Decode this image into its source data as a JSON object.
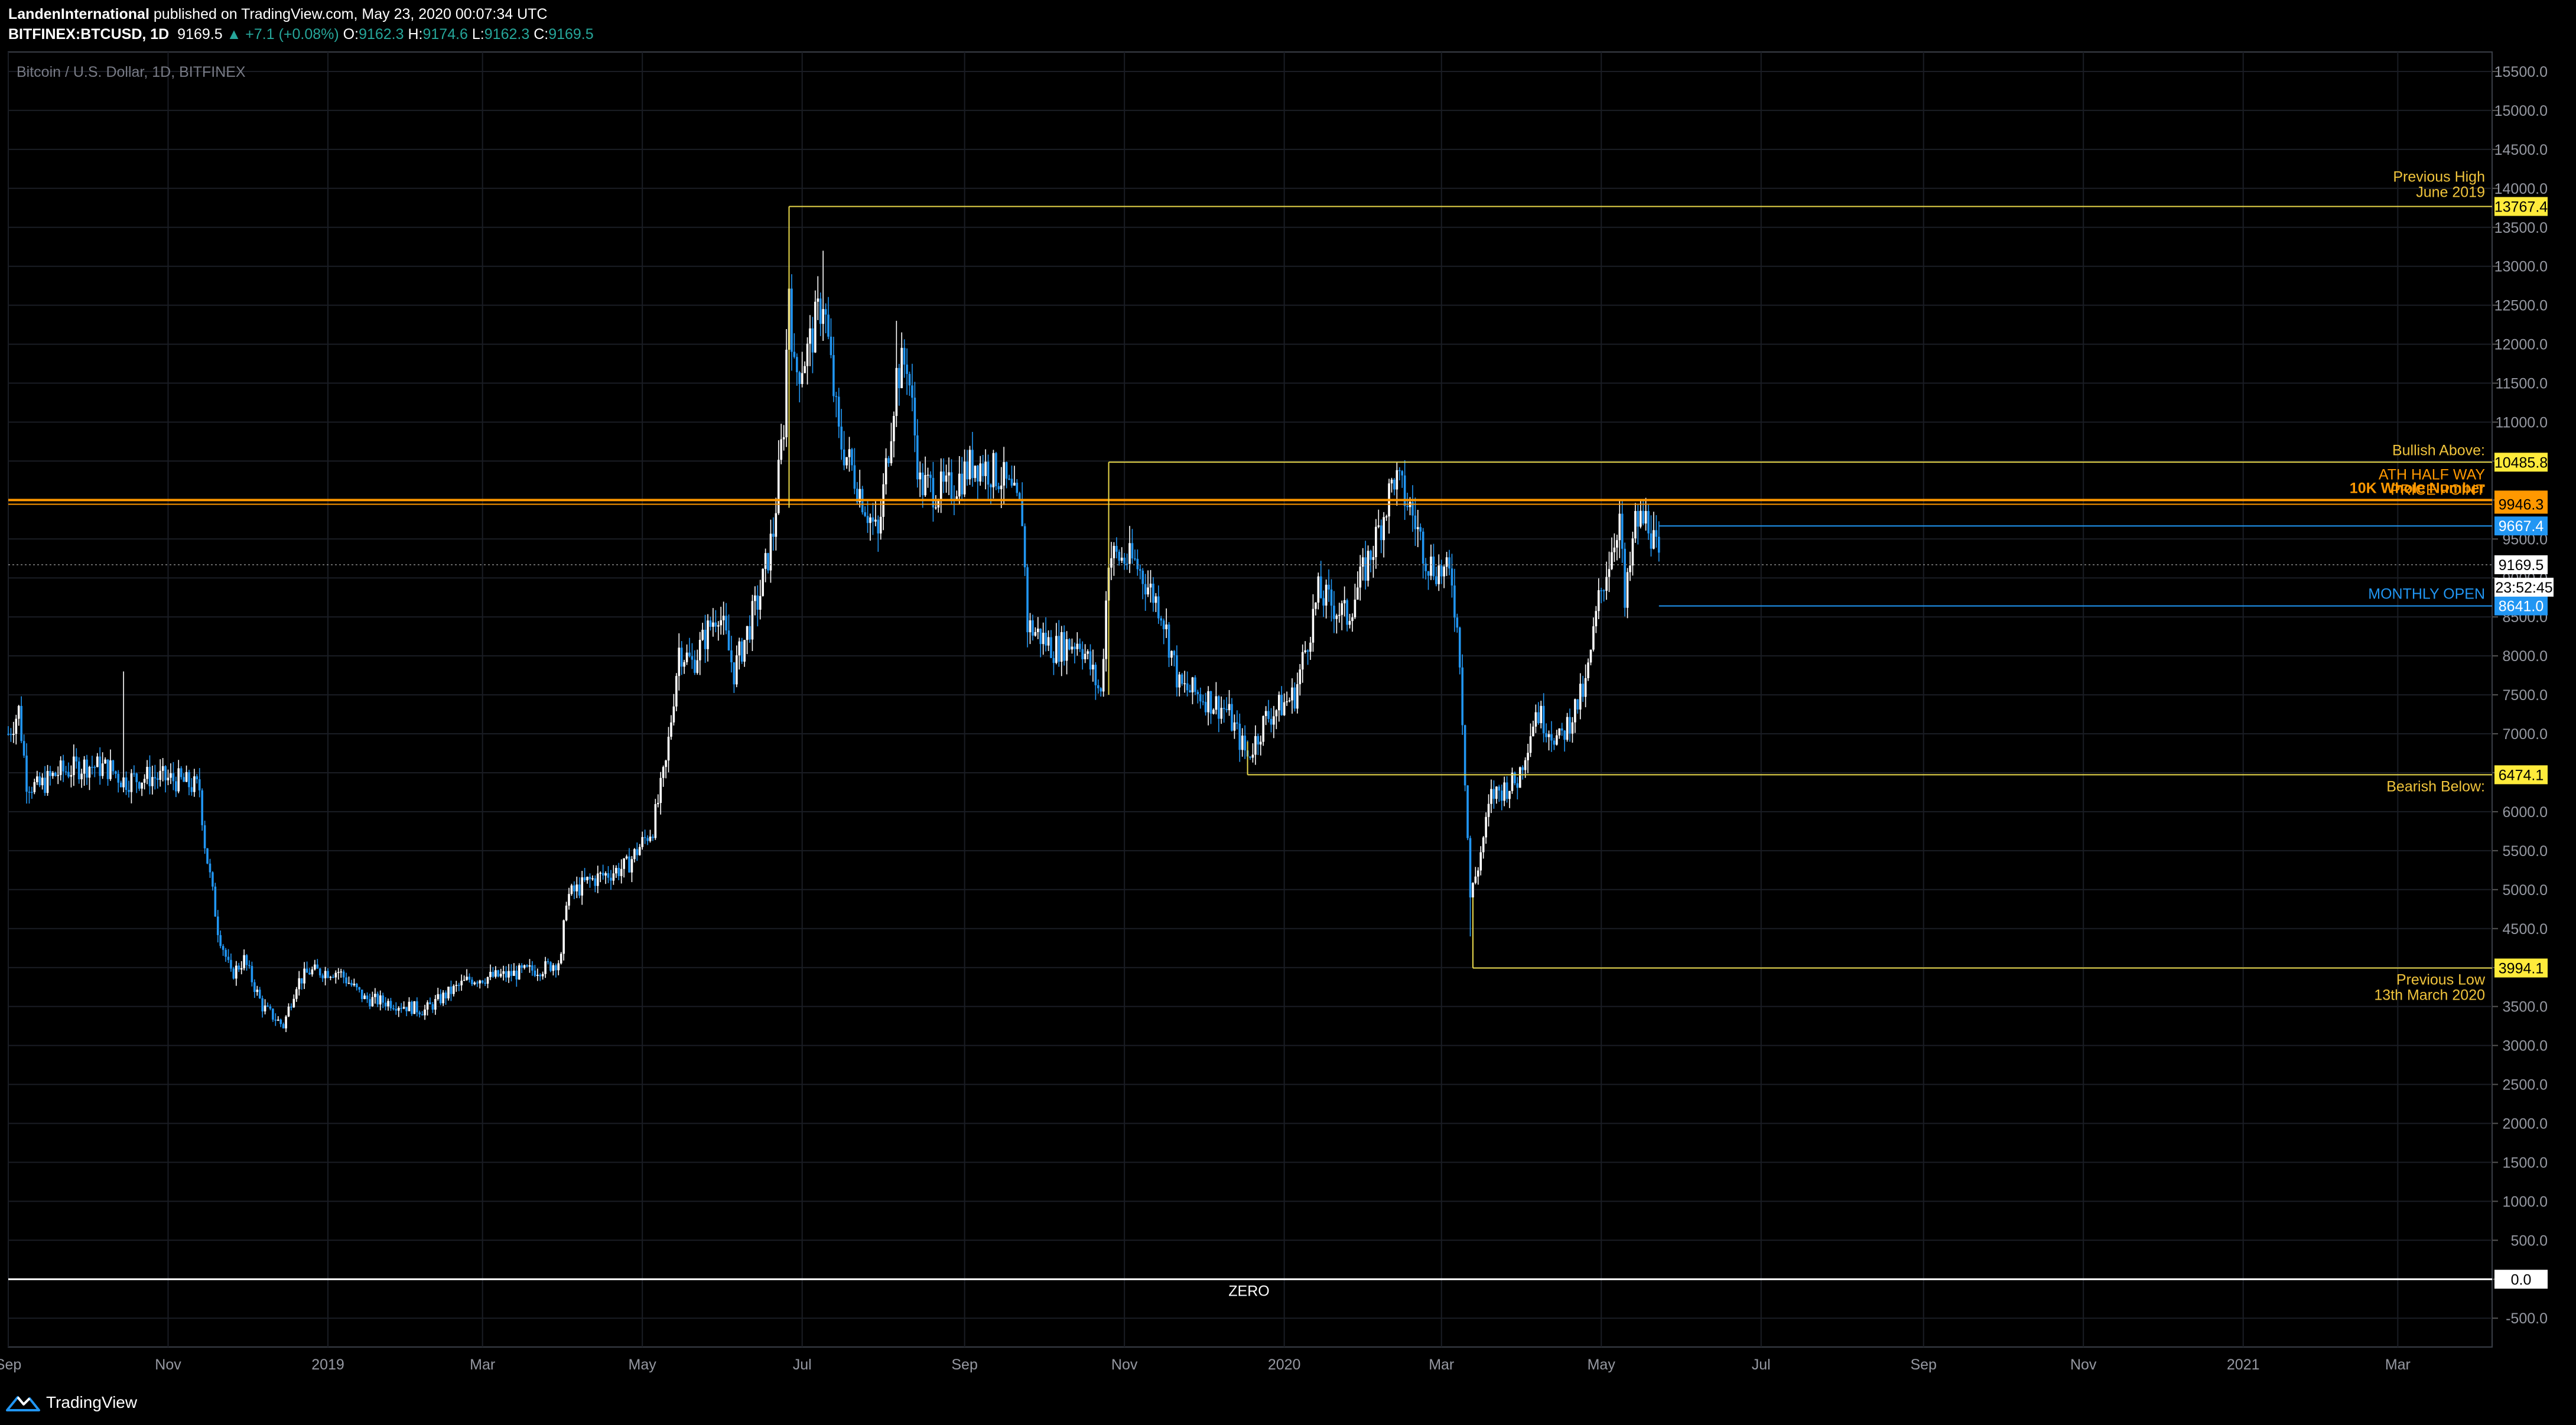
{
  "header": {
    "author": "LandenInternational",
    "published": "published on TradingView.com, May 23, 2020 00:07:34 UTC",
    "symbol": "BITFINEX:BTCUSD, 1D",
    "last": "9169.5",
    "change": "+7.1 (+0.08%)",
    "o_label": "O:",
    "o_value": "9162.3",
    "h_label": "H:",
    "h_value": "9174.6",
    "l_label": "L:",
    "l_value": "9162.3",
    "c_label": "C:",
    "c_value": "9169.5"
  },
  "footer": {
    "brand": "TradingView"
  },
  "colors": {
    "background": "#000000",
    "grid": "#1a1d24",
    "up_candle": "#ffffff",
    "down_candle": "#2196f3",
    "yellow_line": "#e8d84a",
    "orange_line": "#ff9800",
    "blue_line": "#2196f3",
    "white_line": "#ffffff",
    "gold_text": "#f0c43c"
  },
  "chart_data": {
    "type": "candlestick",
    "title": "Bitcoin / U.S. Dollar, 1D, BITFINEX",
    "y_ticks": [
      "15500.0",
      "15000.0",
      "14500.0",
      "14000.0",
      "13500.0",
      "13000.0",
      "12500.0",
      "12000.0",
      "11500.0",
      "11000.0",
      "10500.0",
      "10000.0",
      "9500.0",
      "9000.0",
      "8500.0",
      "8000.0",
      "7500.0",
      "7000.0",
      "6500.0",
      "6000.0",
      "5500.0",
      "5000.0",
      "4500.0",
      "4000.0",
      "3500.0",
      "3000.0",
      "2500.0",
      "2000.0",
      "1500.0",
      "1000.0",
      "500.0",
      "0.0",
      "-500.0"
    ],
    "x_ticks": [
      "Sep",
      "Nov",
      "2019",
      "Mar",
      "May",
      "Jul",
      "Sep",
      "Nov",
      "2020",
      "Mar",
      "May",
      "Jul",
      "Sep",
      "Nov",
      "2021",
      "Mar"
    ],
    "x_tick_dates": [
      "2018-09-01",
      "2018-11-01",
      "2019-01-01",
      "2019-03-01",
      "2019-05-01",
      "2019-07-01",
      "2019-09-01",
      "2019-11-01",
      "2020-01-01",
      "2020-03-01",
      "2020-05-01",
      "2020-07-01",
      "2020-09-01",
      "2020-11-01",
      "2021-01-01",
      "2021-03-01"
    ],
    "x_range": [
      "2018-09-01",
      "2021-04-06"
    ],
    "y_range": [
      -870,
      15750
    ],
    "price_path": [
      [
        "2018-09-01",
        7000
      ],
      [
        "2018-09-05",
        7300
      ],
      [
        "2018-09-08",
        6400
      ],
      [
        "2018-09-12",
        6300
      ],
      [
        "2018-09-20",
        6500
      ],
      [
        "2018-10-01",
        6600
      ],
      [
        "2018-10-10",
        6550
      ],
      [
        "2018-10-15",
        6400
      ],
      [
        "2018-10-25",
        6450
      ],
      [
        "2018-11-05",
        6400
      ],
      [
        "2018-11-13",
        6300
      ],
      [
        "2018-11-15",
        5600
      ],
      [
        "2018-11-20",
        4500
      ],
      [
        "2018-11-25",
        3900
      ],
      [
        "2018-11-30",
        4100
      ],
      [
        "2018-12-07",
        3500
      ],
      [
        "2018-12-15",
        3250
      ],
      [
        "2018-12-20",
        3800
      ],
      [
        "2018-12-25",
        3950
      ],
      [
        "2019-01-05",
        3950
      ],
      [
        "2019-01-15",
        3600
      ],
      [
        "2019-01-25",
        3550
      ],
      [
        "2019-02-07",
        3450
      ],
      [
        "2019-02-15",
        3650
      ],
      [
        "2019-02-24",
        3850
      ],
      [
        "2019-03-10",
        3900
      ],
      [
        "2019-03-25",
        4000
      ],
      [
        "2019-03-31",
        4100
      ],
      [
        "2019-04-02",
        4900
      ],
      [
        "2019-04-10",
        5100
      ],
      [
        "2019-04-25",
        5300
      ],
      [
        "2019-05-05",
        5800
      ],
      [
        "2019-05-10",
        6600
      ],
      [
        "2019-05-15",
        8100
      ],
      [
        "2019-05-20",
        7900
      ],
      [
        "2019-05-30",
        8600
      ],
      [
        "2019-06-05",
        7800
      ],
      [
        "2019-06-15",
        8800
      ],
      [
        "2019-06-20",
        9600
      ],
      [
        "2019-06-24",
        11000
      ],
      [
        "2019-06-26",
        12800
      ],
      [
        "2019-06-28",
        11600
      ],
      [
        "2019-07-03",
        11900
      ],
      [
        "2019-07-09",
        12600
      ],
      [
        "2019-07-15",
        10800
      ],
      [
        "2019-07-20",
        10400
      ],
      [
        "2019-07-30",
        9500
      ],
      [
        "2019-08-06",
        11600
      ],
      [
        "2019-08-10",
        11800
      ],
      [
        "2019-08-15",
        10200
      ],
      [
        "2019-08-25",
        10100
      ],
      [
        "2019-09-05",
        10500
      ],
      [
        "2019-09-15",
        10300
      ],
      [
        "2019-09-23",
        9800
      ],
      [
        "2019-09-25",
        8400
      ],
      [
        "2019-10-05",
        8100
      ],
      [
        "2019-10-15",
        8200
      ],
      [
        "2019-10-23",
        7500
      ],
      [
        "2019-10-26",
        9300
      ],
      [
        "2019-11-05",
        9200
      ],
      [
        "2019-11-15",
        8600
      ],
      [
        "2019-11-22",
        7600
      ],
      [
        "2019-11-30",
        7500
      ],
      [
        "2019-12-10",
        7300
      ],
      [
        "2019-12-18",
        6700
      ],
      [
        "2019-12-25",
        7200
      ],
      [
        "2020-01-05",
        7500
      ],
      [
        "2020-01-14",
        8800
      ],
      [
        "2020-01-25",
        8500
      ],
      [
        "2020-02-05",
        9500
      ],
      [
        "2020-02-12",
        10300
      ],
      [
        "2020-02-18",
        9900
      ],
      [
        "2020-02-25",
        9200
      ],
      [
        "2020-03-05",
        9000
      ],
      [
        "2020-03-08",
        8000
      ],
      [
        "2020-03-12",
        4900
      ],
      [
        "2020-03-15",
        5300
      ],
      [
        "2020-03-20",
        6200
      ],
      [
        "2020-03-30",
        6400
      ],
      [
        "2020-04-06",
        7300
      ],
      [
        "2020-04-15",
        6900
      ],
      [
        "2020-04-25",
        7600
      ],
      [
        "2020-04-30",
        8700
      ],
      [
        "2020-05-08",
        9800
      ],
      [
        "2020-05-10",
        8600
      ],
      [
        "2020-05-14",
        9700
      ],
      [
        "2020-05-19",
        9750
      ],
      [
        "2020-05-23",
        9169.5
      ]
    ],
    "top_wicks": [
      [
        "2019-06-26",
        13767
      ],
      [
        "2019-07-09",
        13200
      ],
      [
        "2019-08-06",
        12300
      ],
      [
        "2020-02-13",
        10485
      ],
      [
        "2020-05-08",
        10000
      ],
      [
        "2018-10-15",
        7800
      ]
    ],
    "bottom_wicks": [
      [
        "2018-12-15",
        3250
      ],
      [
        "2020-03-12",
        4400
      ],
      [
        "2020-03-13",
        3994
      ]
    ],
    "levels": [
      {
        "value": 13767.4,
        "tag": "13767.4",
        "from": "2019-06-26",
        "label1": "Previous High",
        "label2": "June 2019",
        "style": "yellow"
      },
      {
        "value": 10485.8,
        "tag": "10485.8",
        "from": "2019-10-26",
        "label1": "Bullish Above:",
        "label2": "",
        "style": "yellow"
      },
      {
        "value": 10000.0,
        "tag": "10000.0",
        "from": "2018-09-01",
        "label1": "10K Whole Number",
        "label2": "",
        "style": "orange"
      },
      {
        "value": 9946.3,
        "tag": "9946.3",
        "from": "2018-09-01",
        "label1": "ATH HALF WAY",
        "label2": "PRICE POINT",
        "style": "orange-thin"
      },
      {
        "value": 9667.4,
        "tag": "9667.4",
        "from": "2020-05-23",
        "label1": "",
        "label2": "",
        "style": "blue"
      },
      {
        "value": 8641.0,
        "tag": "8641.0",
        "from": "2020-05-23",
        "label1": "MONTHLY OPEN",
        "label2": "",
        "style": "blue"
      },
      {
        "value": 6474.1,
        "tag": "6474.1",
        "from": "2019-12-18",
        "label1": "Bearish Below:",
        "label2": "",
        "style": "yellow"
      },
      {
        "value": 3994.1,
        "tag": "3994.1",
        "from": "2020-03-13",
        "label1": "Previous Low",
        "label2": "13th March 2020",
        "style": "yellow"
      },
      {
        "value": 0.0,
        "tag": "0.0",
        "from": "2018-09-01",
        "label1": "",
        "label2": "",
        "style": "white",
        "center_label": "ZERO"
      }
    ],
    "current": {
      "value": 9169.5,
      "tag": "9169.5",
      "countdown": "23:52:45"
    }
  }
}
